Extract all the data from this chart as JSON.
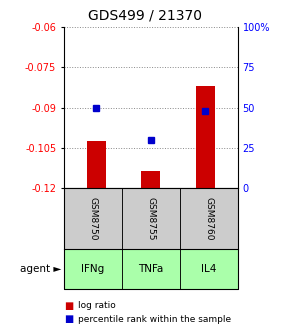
{
  "title": "GDS499 / 21370",
  "samples": [
    "GSM8750",
    "GSM8755",
    "GSM8760"
  ],
  "agents": [
    "IFNg",
    "TNFa",
    "IL4"
  ],
  "log_ratios": [
    -0.1025,
    -0.1135,
    -0.082
  ],
  "percentile_ranks": [
    0.5,
    0.3,
    0.48
  ],
  "ymin": -0.12,
  "ymax": -0.06,
  "yticks_left": [
    -0.06,
    -0.075,
    -0.09,
    -0.105,
    -0.12
  ],
  "yticks_right_labels": [
    "100%",
    "75",
    "50",
    "25",
    "0"
  ],
  "bar_color": "#cc0000",
  "dot_color": "#0000cc",
  "agent_bg_color": "#aaffaa",
  "sample_bg_color": "#cccccc",
  "title_fontsize": 10,
  "tick_fontsize": 7,
  "sample_fontsize": 6.5,
  "agent_fontsize": 7.5,
  "legend_fontsize": 6.5,
  "bar_width": 0.35,
  "bar_baseline": -0.12
}
